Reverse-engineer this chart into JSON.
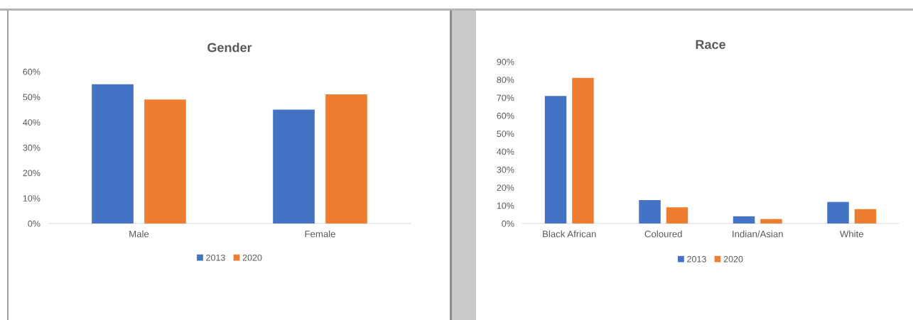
{
  "chart_data": [
    {
      "type": "bar",
      "title": "Gender",
      "categories": [
        "Male",
        "Female"
      ],
      "series": [
        {
          "name": "2013",
          "color": "#4472c4",
          "values": [
            55,
            45
          ]
        },
        {
          "name": "2020",
          "color": "#ed7d31",
          "values": [
            49,
            51
          ]
        }
      ],
      "ylim": [
        0,
        60
      ],
      "yticks": [
        {
          "value": 0,
          "label": "0%"
        },
        {
          "value": 10,
          "label": "10%"
        },
        {
          "value": 20,
          "label": "20%"
        },
        {
          "value": 30,
          "label": "30%"
        },
        {
          "value": 40,
          "label": "40%"
        },
        {
          "value": 50,
          "label": "50%"
        },
        {
          "value": 60,
          "label": "60%"
        }
      ],
      "legend": "bottom",
      "grid": false
    },
    {
      "type": "bar",
      "title": "Race",
      "categories": [
        "Black African",
        "Coloured",
        "Indian/Asian",
        "White"
      ],
      "series": [
        {
          "name": "2013",
          "color": "#4472c4",
          "values": [
            71,
            13,
            4,
            12
          ]
        },
        {
          "name": "2020",
          "color": "#ed7d31",
          "values": [
            81,
            9,
            2.5,
            8
          ]
        }
      ],
      "ylim": [
        0,
        90
      ],
      "yticks": [
        {
          "value": 0,
          "label": "0%"
        },
        {
          "value": 10,
          "label": "10%"
        },
        {
          "value": 20,
          "label": "20%"
        },
        {
          "value": 30,
          "label": "30%"
        },
        {
          "value": 40,
          "label": "40%"
        },
        {
          "value": 50,
          "label": "50%"
        },
        {
          "value": 60,
          "label": "60%"
        },
        {
          "value": 70,
          "label": "70%"
        },
        {
          "value": 80,
          "label": "80%"
        },
        {
          "value": 90,
          "label": "90%"
        }
      ],
      "legend": "bottom",
      "grid": false
    }
  ]
}
